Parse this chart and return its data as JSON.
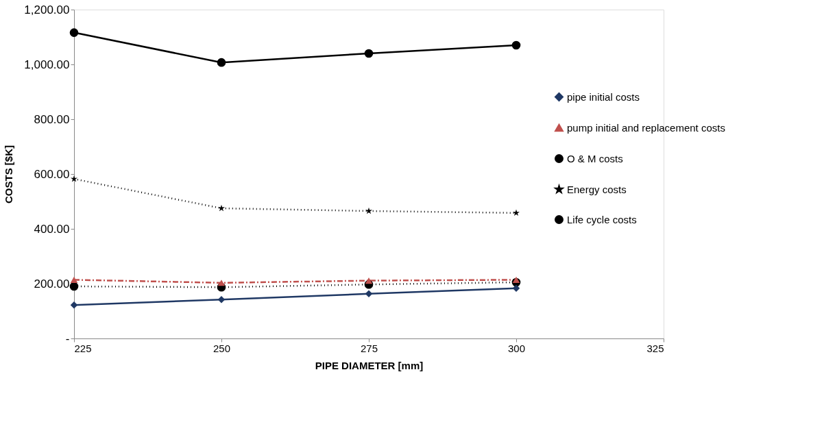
{
  "chart_data": {
    "type": "line",
    "xlabel": "PIPE DIAMETER [mm]",
    "ylabel": "COSTS [$K]",
    "x": [
      225,
      250,
      275,
      300
    ],
    "series": [
      {
        "name": "pipe initial costs",
        "color": "#1f3864",
        "values": [
          122,
          142,
          163,
          183
        ],
        "marker": "diamond",
        "line_style": "solid"
      },
      {
        "name": "pump initial and replacement costs",
        "color": "#c0504d",
        "values": [
          214,
          203,
          211,
          214
        ],
        "marker": "triangle",
        "line_style": "dashed"
      },
      {
        "name": "O & M costs",
        "color": "#000000",
        "values": [
          190,
          187,
          197,
          205
        ],
        "marker": "circle",
        "line_style": "dotted"
      },
      {
        "name": "Energy costs",
        "color": "#000000",
        "values": [
          582,
          475,
          465,
          458
        ],
        "marker": "star",
        "line_style": "dotted"
      },
      {
        "name": "Life cycle costs",
        "color": "#000000",
        "values": [
          1116,
          1007,
          1040,
          1070
        ],
        "marker": "circle",
        "line_style": "solid"
      }
    ],
    "xlim": [
      225,
      325
    ],
    "xticks": [
      225,
      250,
      275,
      300,
      325
    ],
    "ylim": [
      0,
      1200
    ],
    "yticks": [
      {
        "value": 0,
        "label": "-"
      },
      {
        "value": 200,
        "label": "200.00"
      },
      {
        "value": 400,
        "label": "400.00"
      },
      {
        "value": 600,
        "label": "600.00"
      },
      {
        "value": 800,
        "label": "800.00"
      },
      {
        "value": 1000,
        "label": "1,000.00"
      },
      {
        "value": 1200,
        "label": "1,200.00"
      }
    ],
    "grid": false,
    "legend": "right"
  }
}
